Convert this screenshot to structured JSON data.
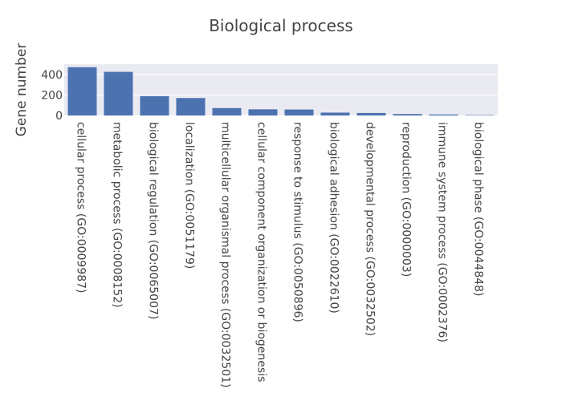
{
  "chart_data": {
    "type": "bar",
    "title": "Biological process",
    "xlabel": "",
    "ylabel": "Gene number",
    "categories": [
      "cellular process (GO:0009987)",
      "metabolic process (GO:0008152)",
      "biological regulation (GO:0065007)",
      "localization (GO:0051179)",
      "multicellular organismal process (GO:0032501)",
      "cellular component organization or biogenesis",
      "response to stimulus (GO:0050896)",
      "biological adhesion (GO:0022610)",
      "developmental process (GO:0032502)",
      "reproduction (GO:0000003)",
      "immune system process (GO:0002376)",
      "biological phase (GO:0044848)"
    ],
    "values": [
      470,
      425,
      188,
      170,
      72,
      60,
      58,
      28,
      24,
      14,
      10,
      4
    ],
    "ylim": [
      0,
      500
    ],
    "yticks": [
      "0",
      "200",
      "400"
    ],
    "grid": true,
    "colors": {
      "bar": "#4c72b0",
      "plot_background": "#eaeaf2",
      "grid": "#ffffff"
    }
  }
}
